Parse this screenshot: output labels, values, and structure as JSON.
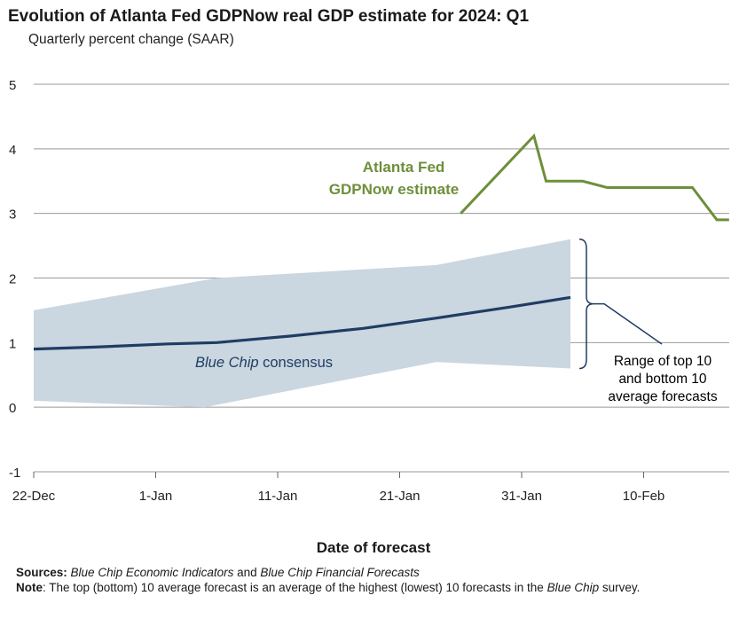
{
  "title": "Evolution of Atlanta Fed GDPNow real GDP estimate for 2024: Q1",
  "subtitle": "Quarterly percent change (SAAR)",
  "xlabel": "Date of forecast",
  "notes": {
    "sources_label": "Sources:",
    "sources_part1": "Blue Chip Economic Indicators",
    "sources_and": " and ",
    "sources_part2": "Blue Chip Financial Forecasts",
    "note_label": "Note",
    "note_text": ": The top (bottom) 10 average forecast is an average of the highest (lowest) 10 forecasts in the ",
    "note_italic": "Blue Chip",
    "note_end": " survey."
  },
  "colors": {
    "gdpnow": "#6e8f3a",
    "consensus": "#1f3d63",
    "range_fill": "#cad6e0",
    "grid": "#999999",
    "annotation": "#1f3d63"
  },
  "chart_data": {
    "type": "line",
    "title": "Evolution of Atlanta Fed GDPNow real GDP estimate for 2024: Q1",
    "subtitle": "Quarterly percent change (SAAR)",
    "xlabel": "Date of forecast",
    "ylabel": "",
    "ylim": [
      -1,
      5
    ],
    "yticks": [
      -1,
      0,
      1,
      2,
      3,
      4,
      5
    ],
    "x_tick_labels": [
      "22-Dec",
      "1-Jan",
      "11-Jan",
      "21-Jan",
      "31-Jan",
      "10-Feb"
    ],
    "x_tick_dates": [
      "2023-12-22",
      "2024-01-01",
      "2024-01-11",
      "2024-01-21",
      "2024-01-31",
      "2024-02-10"
    ],
    "xlim": [
      "2023-12-22",
      "2024-02-19"
    ],
    "grid": true,
    "series": [
      {
        "name": "Atlanta Fed GDPNow estimate",
        "label_lines": [
          "Atlanta Fed",
          "GDPNow estimate"
        ],
        "points": [
          {
            "x": "2024-01-26",
            "y": 3.0
          },
          {
            "x": "2024-02-01",
            "y": 4.2
          },
          {
            "x": "2024-02-02",
            "y": 3.5
          },
          {
            "x": "2024-02-05",
            "y": 3.5
          },
          {
            "x": "2024-02-07",
            "y": 3.4
          },
          {
            "x": "2024-02-14",
            "y": 3.4
          },
          {
            "x": "2024-02-16",
            "y": 2.9
          },
          {
            "x": "2024-02-17",
            "y": 2.9
          }
        ]
      },
      {
        "name": "Blue Chip consensus",
        "label_italic": "Blue Chip",
        "label_rest": " consensus",
        "points": [
          {
            "x": "2023-12-22",
            "y": 0.9
          },
          {
            "x": "2023-12-27",
            "y": 0.93
          },
          {
            "x": "2024-01-02",
            "y": 0.98
          },
          {
            "x": "2024-01-06",
            "y": 1.0
          },
          {
            "x": "2024-01-12",
            "y": 1.1
          },
          {
            "x": "2024-01-18",
            "y": 1.22
          },
          {
            "x": "2024-01-24",
            "y": 1.38
          },
          {
            "x": "2024-01-30",
            "y": 1.55
          },
          {
            "x": "2024-02-04",
            "y": 1.7
          }
        ]
      }
    ],
    "band": {
      "name": "Range of top 10 and bottom 10 average forecasts",
      "label_lines": [
        "Range of top 10",
        "and bottom 10",
        "average forecasts"
      ],
      "upper": [
        {
          "x": "2023-12-22",
          "y": 1.5
        },
        {
          "x": "2024-01-06",
          "y": 2.0
        },
        {
          "x": "2024-01-24",
          "y": 2.2
        },
        {
          "x": "2024-02-04",
          "y": 2.6
        }
      ],
      "lower": [
        {
          "x": "2023-12-22",
          "y": 0.1
        },
        {
          "x": "2024-01-05",
          "y": 0.0
        },
        {
          "x": "2024-01-24",
          "y": 0.7
        },
        {
          "x": "2024-02-04",
          "y": 0.6
        }
      ]
    }
  }
}
